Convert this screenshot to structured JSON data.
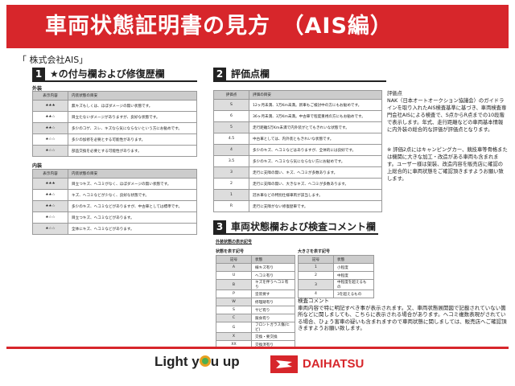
{
  "header": {
    "title": "車両状態証明書の見方　（AIS編）"
  },
  "company": "「 株式会社AIS」",
  "section1": {
    "num": "1",
    "title": "★の付与欄および修復歴欄",
    "exterior": {
      "label": "外装",
      "headers": [
        "表示内容",
        "内装状態の目安"
      ],
      "rows": [
        [
          "★★★",
          "無キズもしくは、ほぼダメージの無い状態です。"
        ],
        [
          "★★☆",
          "目立たないダメージがありますが、良好な状態です。"
        ],
        [
          "★★☆",
          "多少のコゲ、スレ、キズなら気にならないという方にお勧めです。"
        ],
        [
          "★☆☆",
          "多少の加修を必要とする可能性があります。"
        ],
        [
          "★☆☆",
          "部品交換を必要とする可能性があります。"
        ]
      ]
    },
    "interior": {
      "label": "内装",
      "headers": [
        "表示内容",
        "内装状態の目安"
      ],
      "rows": [
        [
          "★★★",
          "目立つキズ、ヘコミがなく、ほぼダメージの無い状態です。"
        ],
        [
          "★★☆",
          "キズ、ヘコミなどが少なく、良好な状態です。"
        ],
        [
          "★★☆",
          "多少のキズ、ヘコミなどがありますが、中古車としては標準です。"
        ],
        [
          "★☆☆",
          "目立つキズ、ヘコミなどがあります。"
        ],
        [
          "★☆☆",
          "全体にキズ、ヘコミなどがあります。"
        ]
      ]
    }
  },
  "section2": {
    "num": "2",
    "title": "評価点欄",
    "headers": [
      "評価点",
      "評価の目安"
    ],
    "rows": [
      [
        "S",
        "12ヶ月未満、1万Km未満。新車もご検討中の方にもお勧めです。"
      ],
      [
        "6",
        "36ヶ月未満、3万Km未満。中古車で程度重視の方にもお勧めです。"
      ],
      [
        "5",
        "走行距離5万Km未満で内外装がとてもきれいな状態です。"
      ],
      [
        "4.5",
        "中古車としては、内外装ともきれいな状態です。"
      ],
      [
        "4",
        "多少のキズ、ヘコミなどはありますが、全体的には良好です。"
      ],
      [
        "3.5",
        "多少のキズ、ヘコミなら気にならない方にお勧めです。"
      ],
      [
        "3",
        "走行に支障の無い、キズ、ヘコミが多数あります。"
      ],
      [
        "2",
        "走行に支障の無い、大きなキズ、ヘコミが多数あります。"
      ],
      [
        "1",
        "冠水車などの特別仕様車両が該当します。"
      ],
      [
        "R",
        "走行に支障がない修復歴車です。"
      ]
    ],
    "note_title": "評価点",
    "note": "NAK（日本オートオークション協議会）のガイドラインを取り入れたAIS検査基準に基づき、車両検査専門会社AISによる検査で、S点からR点までの10段階で表示します。年式、走行距離などの車両基本情報に内外装の総合的な評価が評価点となります。",
    "note2": "※ 評価2点にはキャンピングカー、競技車等骨格または機関に大きな加工・改造がある車両も含まれます。ユーザー様は架装、改造内容を販売店に確認の上総合的に車両状態をご確認頂きますようお願い致します。"
  },
  "section3": {
    "num": "3",
    "title": "車両状態欄および検査コメント欄",
    "sub": "外装状態の表示記号",
    "state": {
      "label": "状態を表す記号",
      "headers": [
        "記号",
        "状態"
      ],
      "rows": [
        [
          "A",
          "線キズ有り"
        ],
        [
          "U",
          "ヘコミ有り"
        ],
        [
          "B",
          "キズを伴うヘコミ有り"
        ],
        [
          "P",
          "塗装要す"
        ],
        [
          "W",
          "修理跡有り"
        ],
        [
          "S",
          "サビ有り"
        ],
        [
          "C",
          "腐食有り"
        ],
        [
          "G",
          "フロントガラス傷(ヒビ)"
        ],
        [
          "X",
          "交換・要交換"
        ],
        [
          "XX",
          "交換済有り"
        ]
      ]
    },
    "size": {
      "label": "大きさを表す記号",
      "headers": [
        "記号",
        "状態"
      ],
      "rows": [
        [
          "1",
          "小程度"
        ],
        [
          "2",
          "中程度"
        ],
        [
          "3",
          "中程度を超えるもの"
        ],
        [
          "4",
          "3を超えるもの"
        ]
      ]
    },
    "comment_title": "検査コメント",
    "comment": "車両内容で特に明記すべき事が表示されます。又、車両状態展開図で記載されていない箇所などに関しましても、こちらに表示される場合があります。ヘコミ複数表現がされている場合、ひょう害車の疑いも含まれますので車両状態に関しましては、販売店へご確認頂きますようお願い致します。"
  },
  "footer": {
    "slogan_pre": "Light y",
    "slogan_post": "u up",
    "brand": "DAIHATSU",
    "colors": {
      "accent": "#d7262b"
    }
  }
}
